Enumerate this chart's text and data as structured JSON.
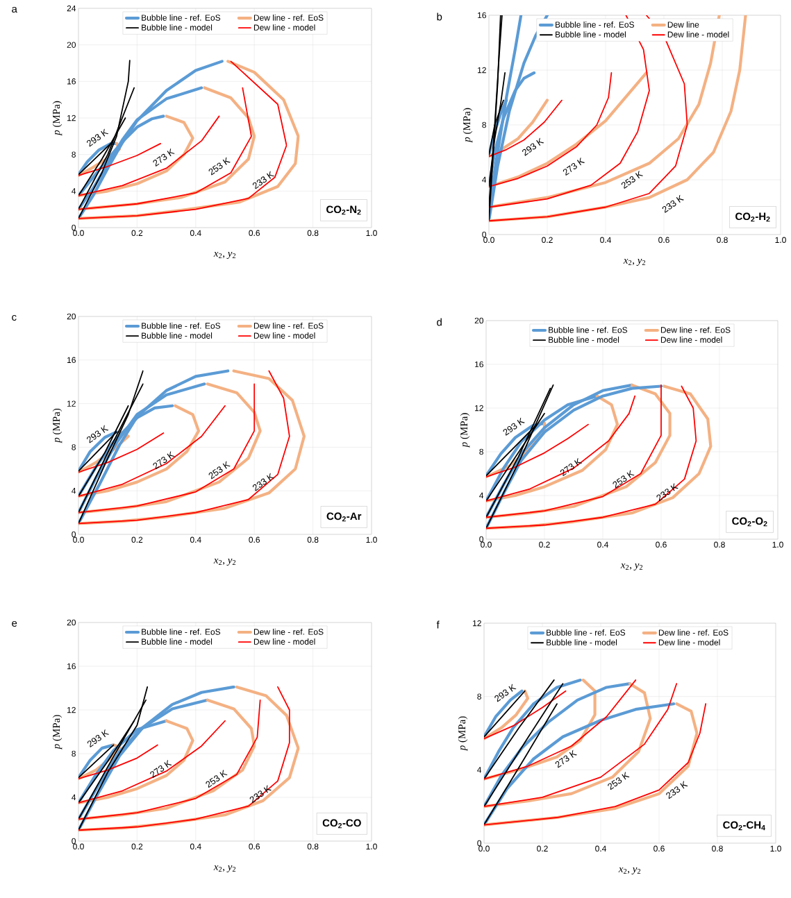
{
  "chart_data": [
    {
      "type": "line",
      "title": "a",
      "xlabel": "*x*$_{2}$, *y*$_{2}$",
      "ylabel": "*p* (MPa)",
      "xlim": [
        0,
        1
      ],
      "ylim": [
        0,
        24
      ],
      "xticks": [
        {
          "value": 0,
          "label": "0.0"
        },
        {
          "value": 0.2,
          "label": "0.2"
        },
        {
          "value": 0.4,
          "label": "0.4"
        },
        {
          "value": 0.6,
          "label": "0.6"
        },
        {
          "value": 0.8,
          "label": "0.8"
        },
        {
          "value": 1,
          "label": "1.0"
        }
      ],
      "yticks": [
        0,
        4,
        8,
        12,
        16,
        20,
        24
      ],
      "grid": true,
      "legend": "top",
      "annotations": [
        "293 K",
        "273 K",
        "253 K",
        "233 K",
        "CO$_{2}$-N$_{2}$"
      ],
      "series": [
        {
          "name": "Bubble line - ref. EoS",
          "color": "#5b9bd5",
          "x": [
            0,
            0.03,
            0.07,
            0.11,
            0.13
          ],
          "values": [
            5.8,
            7.2,
            8.5,
            9.2,
            9.2
          ]
        },
        {
          "name": "Dew line - ref. EoS",
          "color": "#f4b183",
          "x": [
            0,
            0.05,
            0.1,
            0.14,
            0.13
          ],
          "values": [
            5.7,
            6.6,
            7.6,
            8.6,
            9.2
          ]
        },
        {
          "name": "Bubble line - model",
          "color": "#000000",
          "x": [
            0,
            0.11
          ],
          "values": [
            5.8,
            9.2
          ]
        },
        {
          "name": "Dew line - model",
          "color": "#ff0000",
          "x": [
            0,
            0.1,
            0.2,
            0.28
          ],
          "values": [
            5.7,
            6.7,
            7.9,
            9.2
          ]
        },
        {
          "color": "#5b9bd5",
          "x": [
            0,
            0.05,
            0.1,
            0.15,
            0.2,
            0.25,
            0.29
          ],
          "values": [
            3.5,
            5.5,
            7.5,
            9.4,
            11.0,
            11.9,
            12.2
          ]
        },
        {
          "color": "#f4b183",
          "x": [
            0.3,
            0.36,
            0.39,
            0.36,
            0.3,
            0.2,
            0.1,
            0
          ],
          "values": [
            12.2,
            11.5,
            9.8,
            8.0,
            6.2,
            4.8,
            4.0,
            3.5
          ]
        },
        {
          "color": "#000000",
          "x": [
            0,
            0.08,
            0.16
          ],
          "values": [
            3.5,
            7.5,
            12.0
          ]
        },
        {
          "color": "#ff0000",
          "x": [
            0,
            0.15,
            0.3,
            0.42,
            0.48
          ],
          "values": [
            3.5,
            4.6,
            6.5,
            9.5,
            12.2
          ]
        },
        {
          "color": "#5b9bd5",
          "x": [
            0,
            0.05,
            0.1,
            0.15,
            0.2,
            0.3,
            0.42
          ],
          "values": [
            2.0,
            4.3,
            7.0,
            9.6,
            11.8,
            14.1,
            15.3
          ]
        },
        {
          "color": "#f4b183",
          "x": [
            0.43,
            0.52,
            0.58,
            0.6,
            0.58,
            0.5,
            0.35,
            0.2,
            0
          ],
          "values": [
            15.3,
            14.2,
            12.0,
            10.0,
            7.5,
            5.0,
            3.3,
            2.6,
            2.0
          ]
        },
        {
          "color": "#000000",
          "x": [
            0,
            0.1,
            0.19
          ],
          "values": [
            2.0,
            8.0,
            15.3
          ]
        },
        {
          "color": "#ff0000",
          "x": [
            0,
            0.2,
            0.4,
            0.52,
            0.59,
            0.56
          ],
          "values": [
            2.0,
            2.6,
            3.8,
            6.0,
            10.0,
            15.3
          ]
        },
        {
          "color": "#5b9bd5",
          "x": [
            0,
            0.05,
            0.1,
            0.15,
            0.2,
            0.3,
            0.4,
            0.49
          ],
          "values": [
            1.0,
            3.5,
            6.5,
            9.3,
            11.7,
            15.0,
            17.2,
            18.2
          ]
        },
        {
          "color": "#f4b183",
          "x": [
            0.51,
            0.6,
            0.7,
            0.75,
            0.74,
            0.68,
            0.55,
            0.35,
            0.2,
            0
          ],
          "values": [
            18.2,
            17.0,
            14.0,
            10.0,
            7.0,
            4.5,
            2.8,
            1.9,
            1.3,
            1.0
          ]
        },
        {
          "color": "#000000",
          "x": [
            0,
            0.08,
            0.13,
            0.17,
            0.175
          ],
          "values": [
            1.0,
            6.0,
            10.0,
            16.0,
            18.3
          ]
        },
        {
          "color": "#ff0000",
          "x": [
            0,
            0.2,
            0.4,
            0.58,
            0.67,
            0.71,
            0.68,
            0.52
          ],
          "values": [
            1.0,
            1.3,
            2.0,
            3.2,
            5.5,
            9.0,
            13.5,
            18.2
          ]
        }
      ]
    },
    {
      "type": "line",
      "title": "b",
      "xlabel": "*x*$_{2}$, *y*$_{2}$",
      "ylabel": "*p* (MPa)",
      "xlim": [
        0,
        1
      ],
      "ylim": [
        0,
        16
      ],
      "xticks": [
        {
          "value": 0,
          "label": "0.0"
        },
        {
          "value": 0.2,
          "label": "0.2"
        },
        {
          "value": 0.4,
          "label": "0.4"
        },
        {
          "value": 0.6,
          "label": "0.6"
        },
        {
          "value": 0.8,
          "label": "0.8"
        },
        {
          "value": 1,
          "label": "1.0"
        }
      ],
      "yticks": [
        0,
        4,
        8,
        12,
        16
      ],
      "grid": true,
      "legend": "top",
      "annotations": [
        "293 K",
        "273 K",
        "253 K",
        "233 K",
        "CO$_{2}$-H$_{2}$"
      ],
      "series": [
        {
          "name": "Bubble line - ref. EoS",
          "color": "#5b9bd5",
          "x": [
            0,
            0.02,
            0.04,
            0.06
          ],
          "values": [
            5.8,
            7.5,
            8.8,
            9.8
          ]
        },
        {
          "name": "Dew line",
          "color": "#f4b183",
          "x": [
            0,
            0.05,
            0.1,
            0.15,
            0.2
          ],
          "values": [
            5.7,
            6.3,
            7.0,
            8.2,
            9.8
          ]
        },
        {
          "name": "Bubble line - model",
          "color": "#000000",
          "x": [
            0,
            0.02,
            0.05
          ],
          "values": [
            5.8,
            8.0,
            9.8
          ]
        },
        {
          "name": "Dew line - model",
          "color": "#ff0000",
          "x": [
            0,
            0.06,
            0.12,
            0.19,
            0.25
          ],
          "values": [
            5.7,
            6.2,
            6.9,
            8.2,
            9.8
          ]
        },
        {
          "color": "#5b9bd5",
          "x": [
            0,
            0.02,
            0.05,
            0.09,
            0.12,
            0.155
          ],
          "values": [
            3.5,
            6.0,
            8.5,
            10.5,
            11.4,
            11.8
          ]
        },
        {
          "color": "#f4b183",
          "x": [
            0,
            0.1,
            0.2,
            0.3,
            0.4,
            0.5,
            0.54
          ],
          "values": [
            3.5,
            4.2,
            5.2,
            6.6,
            8.3,
            10.8,
            11.8
          ]
        },
        {
          "color": "#000000",
          "x": [
            0,
            0.02,
            0.04,
            0.055
          ],
          "values": [
            3.5,
            7.0,
            9.5,
            11.8
          ]
        },
        {
          "color": "#ff0000",
          "x": [
            0,
            0.1,
            0.2,
            0.3,
            0.37,
            0.41,
            0.42
          ],
          "values": [
            3.5,
            4.1,
            5.0,
            6.4,
            8.0,
            10.0,
            11.8
          ]
        },
        {
          "color": "#5b9bd5",
          "x": [
            0,
            0.03,
            0.06,
            0.09,
            0.11
          ],
          "values": [
            2.0,
            6.0,
            10.0,
            13.5,
            16.0
          ]
        },
        {
          "color": "#f4b183",
          "x": [
            0,
            0.2,
            0.4,
            0.55,
            0.65,
            0.72,
            0.76,
            0.79
          ],
          "values": [
            2.0,
            2.7,
            3.8,
            5.2,
            7.0,
            9.5,
            12.5,
            16.0
          ]
        },
        {
          "color": "#000000",
          "x": [
            0,
            0.02,
            0.035,
            0.045
          ],
          "values": [
            2.0,
            8.0,
            13.0,
            16.0
          ]
        },
        {
          "color": "#ff0000",
          "x": [
            0,
            0.2,
            0.35,
            0.45,
            0.51,
            0.55,
            0.53,
            0.47
          ],
          "values": [
            2.0,
            2.6,
            3.6,
            5.2,
            7.5,
            10.5,
            13.5,
            16.0
          ]
        },
        {
          "color": "#5b9bd5",
          "x": [
            0,
            0.03,
            0.07,
            0.12,
            0.16,
            0.2
          ],
          "values": [
            1.0,
            5.0,
            9.0,
            12.5,
            14.5,
            16.0
          ]
        },
        {
          "color": "#f4b183",
          "x": [
            0,
            0.2,
            0.4,
            0.55,
            0.68,
            0.77,
            0.83,
            0.86,
            0.88
          ],
          "values": [
            1.0,
            1.3,
            2.0,
            2.7,
            4.0,
            6.0,
            9.0,
            12.0,
            16.0
          ]
        },
        {
          "color": "#000000",
          "x": [
            0,
            0.015,
            0.03,
            0.04
          ],
          "values": [
            1.0,
            6.0,
            11.0,
            16.0
          ]
        },
        {
          "color": "#ff0000",
          "x": [
            0,
            0.2,
            0.4,
            0.55,
            0.64,
            0.68,
            0.67,
            0.6,
            0.54
          ],
          "values": [
            1.0,
            1.3,
            2.0,
            3.0,
            5.0,
            8.0,
            11.0,
            14.5,
            16.0
          ]
        }
      ]
    },
    {
      "type": "line",
      "title": "c",
      "xlabel": "*x*$_{2}$, *y*$_{2}$",
      "ylabel": "*p* (MPa)",
      "xlim": [
        0,
        1
      ],
      "ylim": [
        0,
        20
      ],
      "xticks": [
        {
          "value": 0,
          "label": "0.0"
        },
        {
          "value": 0.2,
          "label": "0.2"
        },
        {
          "value": 0.4,
          "label": "0.4"
        },
        {
          "value": 0.6,
          "label": "0.6"
        },
        {
          "value": 0.8,
          "label": "0.8"
        },
        {
          "value": 1,
          "label": "1.0"
        }
      ],
      "yticks": [
        0,
        4,
        8,
        12,
        16,
        20
      ],
      "grid": true,
      "legend": "top",
      "annotations": [
        "293 K",
        "273 K",
        "253 K",
        "233 K",
        "CO$_{2}$-Ar"
      ],
      "series": [
        {
          "name": "Bubble line - ref. EoS",
          "color": "#5b9bd5",
          "x": [
            0,
            0.04,
            0.09,
            0.13
          ],
          "values": [
            5.8,
            7.6,
            8.9,
            9.4
          ]
        },
        {
          "name": "Dew line - ref. EoS",
          "color": "#f4b183",
          "x": [
            0,
            0.06,
            0.12,
            0.17,
            0.14
          ],
          "values": [
            5.7,
            6.6,
            7.8,
            9.0,
            9.4
          ]
        },
        {
          "name": "Bubble line - model",
          "color": "#000000",
          "x": [
            0,
            0.13
          ],
          "values": [
            5.8,
            9.4
          ]
        },
        {
          "name": "Dew line - model",
          "color": "#ff0000",
          "x": [
            0,
            0.1,
            0.2,
            0.29
          ],
          "values": [
            5.7,
            6.6,
            7.8,
            9.3
          ]
        },
        {
          "color": "#5b9bd5",
          "x": [
            0,
            0.06,
            0.12,
            0.2,
            0.26,
            0.32
          ],
          "values": [
            3.5,
            6.2,
            8.5,
            10.7,
            11.6,
            11.8
          ]
        },
        {
          "color": "#f4b183",
          "x": [
            0.33,
            0.39,
            0.41,
            0.37,
            0.3,
            0.2,
            0.1,
            0
          ],
          "values": [
            11.8,
            11.0,
            9.5,
            7.6,
            6.0,
            4.8,
            4.0,
            3.5
          ]
        },
        {
          "color": "#000000",
          "x": [
            0,
            0.09,
            0.17
          ],
          "values": [
            3.5,
            7.5,
            11.8
          ]
        },
        {
          "color": "#ff0000",
          "x": [
            0,
            0.15,
            0.3,
            0.42,
            0.5
          ],
          "values": [
            3.5,
            4.6,
            6.5,
            9.0,
            11.8
          ]
        },
        {
          "color": "#5b9bd5",
          "x": [
            0,
            0.06,
            0.13,
            0.2,
            0.3,
            0.43
          ],
          "values": [
            2.0,
            5.2,
            8.4,
            11.0,
            12.8,
            13.8
          ]
        },
        {
          "color": "#f4b183",
          "x": [
            0.44,
            0.54,
            0.6,
            0.62,
            0.58,
            0.48,
            0.3,
            0.15,
            0
          ],
          "values": [
            13.8,
            13.0,
            11.2,
            9.5,
            7.0,
            4.8,
            3.0,
            2.4,
            2.0
          ]
        },
        {
          "color": "#000000",
          "x": [
            0,
            0.1,
            0.22
          ],
          "values": [
            2.0,
            7.5,
            13.8
          ]
        },
        {
          "color": "#ff0000",
          "x": [
            0,
            0.2,
            0.4,
            0.53,
            0.6,
            0.6
          ],
          "values": [
            2.0,
            2.6,
            3.9,
            6.0,
            9.5,
            13.8
          ]
        },
        {
          "color": "#5b9bd5",
          "x": [
            0,
            0.07,
            0.14,
            0.2,
            0.3,
            0.4,
            0.51
          ],
          "values": [
            1.0,
            4.5,
            8.2,
            10.8,
            13.2,
            14.5,
            15.0
          ]
        },
        {
          "color": "#f4b183",
          "x": [
            0.53,
            0.65,
            0.73,
            0.77,
            0.74,
            0.65,
            0.5,
            0.3,
            0.15,
            0
          ],
          "values": [
            15.0,
            14.3,
            12.3,
            9.0,
            6.0,
            3.8,
            2.4,
            1.6,
            1.2,
            1.0
          ]
        },
        {
          "color": "#000000",
          "x": [
            0,
            0.1,
            0.17,
            0.22
          ],
          "values": [
            1.0,
            7.0,
            11.0,
            15.0
          ]
        },
        {
          "color": "#ff0000",
          "x": [
            0,
            0.2,
            0.4,
            0.58,
            0.68,
            0.72,
            0.7,
            0.65
          ],
          "values": [
            1.0,
            1.3,
            2.0,
            3.2,
            5.5,
            9.0,
            12.5,
            15.0
          ]
        }
      ]
    },
    {
      "type": "line",
      "title": "d",
      "xlabel": "*x*$_{2}$, *y*$_{2}$",
      "ylabel": "*p* (MPa)",
      "xlim": [
        0,
        1
      ],
      "ylim": [
        0,
        20
      ],
      "xticks": [
        {
          "value": 0,
          "label": "0.0"
        },
        {
          "value": 0.2,
          "label": "0.2"
        },
        {
          "value": 0.4,
          "label": "0.4"
        },
        {
          "value": 0.6,
          "label": "0.6"
        },
        {
          "value": 0.8,
          "label": "0.8"
        },
        {
          "value": 1,
          "label": "1.0"
        }
      ],
      "yticks": [
        0,
        4,
        8,
        12,
        16,
        20
      ],
      "grid": true,
      "legend": "top",
      "annotations": [
        "293 K",
        "273 K",
        "253 K",
        "233 K",
        "CO$_{2}$-O$_{2}$"
      ],
      "series": [
        {
          "name": "Bubble line - ref. EoS",
          "color": "#5b9bd5",
          "x": [
            0,
            0.05,
            0.1,
            0.16,
            0.2
          ],
          "values": [
            5.8,
            7.8,
            9.3,
            10.4,
            10.6
          ]
        },
        {
          "name": "Dew line - ref. EoS",
          "color": "#f4b183",
          "x": [
            0,
            0.08,
            0.15,
            0.2,
            0.2
          ],
          "values": [
            5.7,
            6.7,
            8.3,
            9.8,
            10.6
          ]
        },
        {
          "name": "Bubble line - model",
          "color": "#000000",
          "x": [
            0,
            0.17
          ],
          "values": [
            5.8,
            10.4
          ]
        },
        {
          "name": "Dew line - model",
          "color": "#ff0000",
          "x": [
            0,
            0.1,
            0.2,
            0.28,
            0.35
          ],
          "values": [
            5.7,
            6.6,
            7.9,
            9.2,
            10.5
          ]
        },
        {
          "color": "#5b9bd5",
          "x": [
            0,
            0.06,
            0.12,
            0.2,
            0.28,
            0.38
          ],
          "values": [
            3.5,
            6.5,
            8.9,
            10.9,
            12.3,
            13.1
          ]
        },
        {
          "color": "#f4b183",
          "x": [
            0.38,
            0.43,
            0.45,
            0.41,
            0.33,
            0.2,
            0.1,
            0
          ],
          "values": [
            13.1,
            12.3,
            10.5,
            8.2,
            6.3,
            4.8,
            4.0,
            3.5
          ]
        },
        {
          "color": "#000000",
          "x": [
            0,
            0.1,
            0.2
          ],
          "values": [
            3.5,
            7.5,
            11.5
          ]
        },
        {
          "color": "#ff0000",
          "x": [
            0,
            0.15,
            0.3,
            0.42,
            0.49,
            0.51
          ],
          "values": [
            3.5,
            4.6,
            6.5,
            9.0,
            11.5,
            13.1
          ]
        },
        {
          "color": "#5b9bd5",
          "x": [
            0,
            0.06,
            0.12,
            0.2,
            0.3,
            0.4,
            0.5
          ],
          "values": [
            2.0,
            5.0,
            7.8,
            10.2,
            12.3,
            13.6,
            14.1
          ]
        },
        {
          "color": "#f4b183",
          "x": [
            0.5,
            0.58,
            0.63,
            0.63,
            0.58,
            0.48,
            0.3,
            0.15,
            0
          ],
          "values": [
            14.1,
            13.3,
            11.5,
            9.5,
            7.0,
            4.8,
            3.0,
            2.4,
            2.0
          ]
        },
        {
          "color": "#000000",
          "x": [
            0,
            0.11,
            0.22
          ],
          "values": [
            2.0,
            7.5,
            13.8
          ]
        },
        {
          "color": "#ff0000",
          "x": [
            0,
            0.2,
            0.4,
            0.53,
            0.6,
            0.6
          ],
          "values": [
            2.0,
            2.6,
            3.9,
            6.0,
            9.5,
            14.1
          ]
        },
        {
          "color": "#5b9bd5",
          "x": [
            0,
            0.06,
            0.12,
            0.2,
            0.3,
            0.4,
            0.5,
            0.6
          ],
          "values": [
            1.0,
            4.2,
            7.2,
            9.8,
            11.8,
            13.1,
            13.8,
            14.0
          ]
        },
        {
          "color": "#f4b183",
          "x": [
            0.61,
            0.7,
            0.76,
            0.77,
            0.73,
            0.64,
            0.5,
            0.3,
            0.15,
            0
          ],
          "values": [
            14.0,
            13.3,
            11.0,
            8.5,
            6.0,
            3.8,
            2.4,
            1.6,
            1.2,
            1.0
          ]
        },
        {
          "color": "#000000",
          "x": [
            0,
            0.12,
            0.23
          ],
          "values": [
            1.0,
            7.5,
            14.1
          ]
        },
        {
          "color": "#ff0000",
          "x": [
            0,
            0.2,
            0.4,
            0.58,
            0.68,
            0.72,
            0.71,
            0.67
          ],
          "values": [
            1.0,
            1.3,
            2.0,
            3.2,
            5.5,
            9.0,
            12.0,
            14.0
          ]
        }
      ]
    },
    {
      "type": "line",
      "title": "e",
      "xlabel": "*x*$_{2}$, *y*$_{2}$",
      "ylabel": "*p* (MPa)",
      "xlim": [
        0,
        1
      ],
      "ylim": [
        0,
        20
      ],
      "xticks": [
        {
          "value": 0,
          "label": "0.0"
        },
        {
          "value": 0.2,
          "label": "0.2"
        },
        {
          "value": 0.4,
          "label": "0.4"
        },
        {
          "value": 0.6,
          "label": "0.6"
        },
        {
          "value": 0.8,
          "label": "0.8"
        },
        {
          "value": 1,
          "label": "1.0"
        }
      ],
      "yticks": [
        0,
        4,
        8,
        12,
        16,
        20
      ],
      "grid": true,
      "legend": "top",
      "annotations": [
        "293 K",
        "273 K",
        "253 K",
        "233 K",
        "CO$_{2}$-CO"
      ],
      "series": [
        {
          "name": "Bubble line - ref. EoS",
          "color": "#5b9bd5",
          "x": [
            0,
            0.04,
            0.08,
            0.12
          ],
          "values": [
            5.8,
            7.4,
            8.5,
            8.8
          ]
        },
        {
          "name": "Dew line - ref. EoS",
          "color": "#f4b183",
          "x": [
            0,
            0.06,
            0.11,
            0.14,
            0.12
          ],
          "values": [
            5.7,
            6.5,
            7.6,
            8.6,
            8.8
          ]
        },
        {
          "name": "Bubble line - model",
          "color": "#000000",
          "x": [
            0,
            0.12
          ],
          "values": [
            5.8,
            8.8
          ]
        },
        {
          "name": "Dew line - model",
          "color": "#ff0000",
          "x": [
            0,
            0.1,
            0.2,
            0.27
          ],
          "values": [
            5.7,
            6.5,
            7.6,
            8.8
          ]
        },
        {
          "color": "#5b9bd5",
          "x": [
            0,
            0.06,
            0.12,
            0.2,
            0.3
          ],
          "values": [
            3.5,
            6.1,
            8.3,
            10.2,
            11.0
          ]
        },
        {
          "color": "#f4b183",
          "x": [
            0.3,
            0.37,
            0.39,
            0.36,
            0.3,
            0.2,
            0.1,
            0
          ],
          "values": [
            11.0,
            10.3,
            9.2,
            7.4,
            6.0,
            4.8,
            4.0,
            3.5
          ]
        },
        {
          "color": "#000000",
          "x": [
            0,
            0.1,
            0.19
          ],
          "values": [
            3.5,
            7.3,
            11.0
          ]
        },
        {
          "color": "#ff0000",
          "x": [
            0,
            0.15,
            0.3,
            0.42,
            0.5
          ],
          "values": [
            3.5,
            4.6,
            6.4,
            8.7,
            11.0
          ]
        },
        {
          "color": "#5b9bd5",
          "x": [
            0,
            0.07,
            0.14,
            0.22,
            0.32,
            0.44
          ],
          "values": [
            2.0,
            5.2,
            8.2,
            10.4,
            12.1,
            12.9
          ]
        },
        {
          "color": "#f4b183",
          "x": [
            0.44,
            0.53,
            0.59,
            0.6,
            0.56,
            0.46,
            0.3,
            0.15,
            0
          ],
          "values": [
            12.9,
            12.1,
            10.3,
            8.7,
            6.5,
            4.6,
            3.0,
            2.4,
            2.0
          ]
        },
        {
          "color": "#000000",
          "x": [
            0,
            0.1,
            0.23
          ],
          "values": [
            2.0,
            6.8,
            12.9
          ]
        },
        {
          "color": "#ff0000",
          "x": [
            0,
            0.2,
            0.4,
            0.54,
            0.61,
            0.62
          ],
          "values": [
            2.0,
            2.6,
            3.9,
            6.1,
            9.5,
            12.9
          ]
        },
        {
          "color": "#5b9bd5",
          "x": [
            0,
            0.07,
            0.14,
            0.22,
            0.32,
            0.42,
            0.53
          ],
          "values": [
            1.0,
            4.5,
            7.8,
            10.4,
            12.5,
            13.6,
            14.1
          ]
        },
        {
          "color": "#f4b183",
          "x": [
            0.54,
            0.64,
            0.71,
            0.75,
            0.72,
            0.63,
            0.5,
            0.3,
            0.15,
            0
          ],
          "values": [
            14.1,
            13.3,
            11.5,
            8.5,
            5.8,
            3.7,
            2.4,
            1.6,
            1.2,
            1.0
          ]
        },
        {
          "color": "#000000",
          "x": [
            0,
            0.1,
            0.2,
            0.235
          ],
          "values": [
            1.0,
            6.3,
            10.6,
            14.1
          ]
        },
        {
          "color": "#ff0000",
          "x": [
            0,
            0.2,
            0.4,
            0.58,
            0.68,
            0.72,
            0.72,
            0.68
          ],
          "values": [
            1.0,
            1.3,
            2.0,
            3.2,
            5.5,
            9.0,
            12.0,
            14.1
          ]
        }
      ]
    },
    {
      "type": "line",
      "title": "f",
      "xlabel": "*x*$_{2}$, *y*$_{2}$",
      "ylabel": "*p* (MPa)",
      "xlim": [
        0,
        1
      ],
      "ylim": [
        0,
        12
      ],
      "xticks": [
        {
          "value": 0,
          "label": "0.0"
        },
        {
          "value": 0.2,
          "label": "0.2"
        },
        {
          "value": 0.4,
          "label": "0.4"
        },
        {
          "value": 0.6,
          "label": "0.6"
        },
        {
          "value": 0.8,
          "label": "0.8"
        },
        {
          "value": 1,
          "label": "1.0"
        }
      ],
      "yticks": [
        0,
        4,
        8,
        12
      ],
      "grid": true,
      "legend": "top",
      "annotations": [
        "293 K",
        "273 K",
        "253 K",
        "233 K",
        "CO$_{2}$-CH$_{4}$"
      ],
      "series": [
        {
          "name": "Bubble line - ref. EoS",
          "color": "#5b9bd5",
          "x": [
            0,
            0.04,
            0.09,
            0.13
          ],
          "values": [
            5.8,
            6.9,
            7.8,
            8.3
          ]
        },
        {
          "name": "Dew line - ref. EoS",
          "color": "#f4b183",
          "x": [
            0,
            0.06,
            0.11,
            0.15,
            0.14
          ],
          "values": [
            5.7,
            6.3,
            7.0,
            7.9,
            8.3
          ]
        },
        {
          "name": "Bubble line - model",
          "color": "#000000",
          "x": [
            0,
            0.14
          ],
          "values": [
            5.8,
            8.3
          ]
        },
        {
          "name": "Dew line - model",
          "color": "#ff0000",
          "x": [
            0,
            0.1,
            0.2,
            0.28
          ],
          "values": [
            5.7,
            6.4,
            7.4,
            8.3
          ]
        },
        {
          "color": "#5b9bd5",
          "x": [
            0,
            0.05,
            0.1,
            0.17,
            0.25,
            0.33
          ],
          "values": [
            3.5,
            5.0,
            6.3,
            7.6,
            8.5,
            8.9
          ]
        },
        {
          "color": "#f4b183",
          "x": [
            0.34,
            0.38,
            0.38,
            0.33,
            0.25,
            0.12,
            0
          ],
          "values": [
            8.9,
            8.3,
            7.0,
            5.6,
            4.7,
            4.0,
            3.5
          ]
        },
        {
          "color": "#000000",
          "x": [
            0,
            0.12,
            0.24
          ],
          "values": [
            3.5,
            6.3,
            8.9
          ]
        },
        {
          "color": "#ff0000",
          "x": [
            0,
            0.15,
            0.3,
            0.42,
            0.52
          ],
          "values": [
            3.5,
            4.2,
            5.3,
            6.9,
            8.9
          ]
        },
        {
          "color": "#5b9bd5",
          "x": [
            0,
            0.06,
            0.13,
            0.22,
            0.32,
            0.42,
            0.5
          ],
          "values": [
            2.0,
            3.7,
            5.2,
            6.6,
            7.8,
            8.5,
            8.7
          ]
        },
        {
          "color": "#f4b183",
          "x": [
            0.5,
            0.55,
            0.57,
            0.53,
            0.44,
            0.3,
            0.15,
            0
          ],
          "values": [
            8.7,
            8.2,
            6.8,
            5.0,
            3.6,
            2.7,
            2.3,
            2.0
          ]
        },
        {
          "color": "#000000",
          "x": [
            0,
            0.14,
            0.27
          ],
          "values": [
            2.0,
            5.5,
            8.7
          ]
        },
        {
          "color": "#ff0000",
          "x": [
            0,
            0.2,
            0.4,
            0.55,
            0.63,
            0.66
          ],
          "values": [
            2.0,
            2.5,
            3.6,
            5.4,
            7.3,
            8.7
          ]
        },
        {
          "color": "#5b9bd5",
          "x": [
            0,
            0.08,
            0.17,
            0.27,
            0.4,
            0.52,
            0.65
          ],
          "values": [
            1.0,
            3.0,
            4.6,
            5.8,
            6.7,
            7.3,
            7.6
          ]
        },
        {
          "color": "#f4b183",
          "x": [
            0.66,
            0.71,
            0.73,
            0.7,
            0.6,
            0.45,
            0.25,
            0
          ],
          "values": [
            7.6,
            7.2,
            6.0,
            4.2,
            2.7,
            1.9,
            1.4,
            1.0
          ]
        },
        {
          "color": "#000000",
          "x": [
            0,
            0.13,
            0.25
          ],
          "values": [
            1.0,
            4.4,
            7.6
          ]
        },
        {
          "color": "#ff0000",
          "x": [
            0,
            0.25,
            0.45,
            0.6,
            0.7,
            0.74,
            0.76
          ],
          "values": [
            1.0,
            1.4,
            2.0,
            2.9,
            4.4,
            6.0,
            7.6
          ]
        }
      ]
    }
  ]
}
